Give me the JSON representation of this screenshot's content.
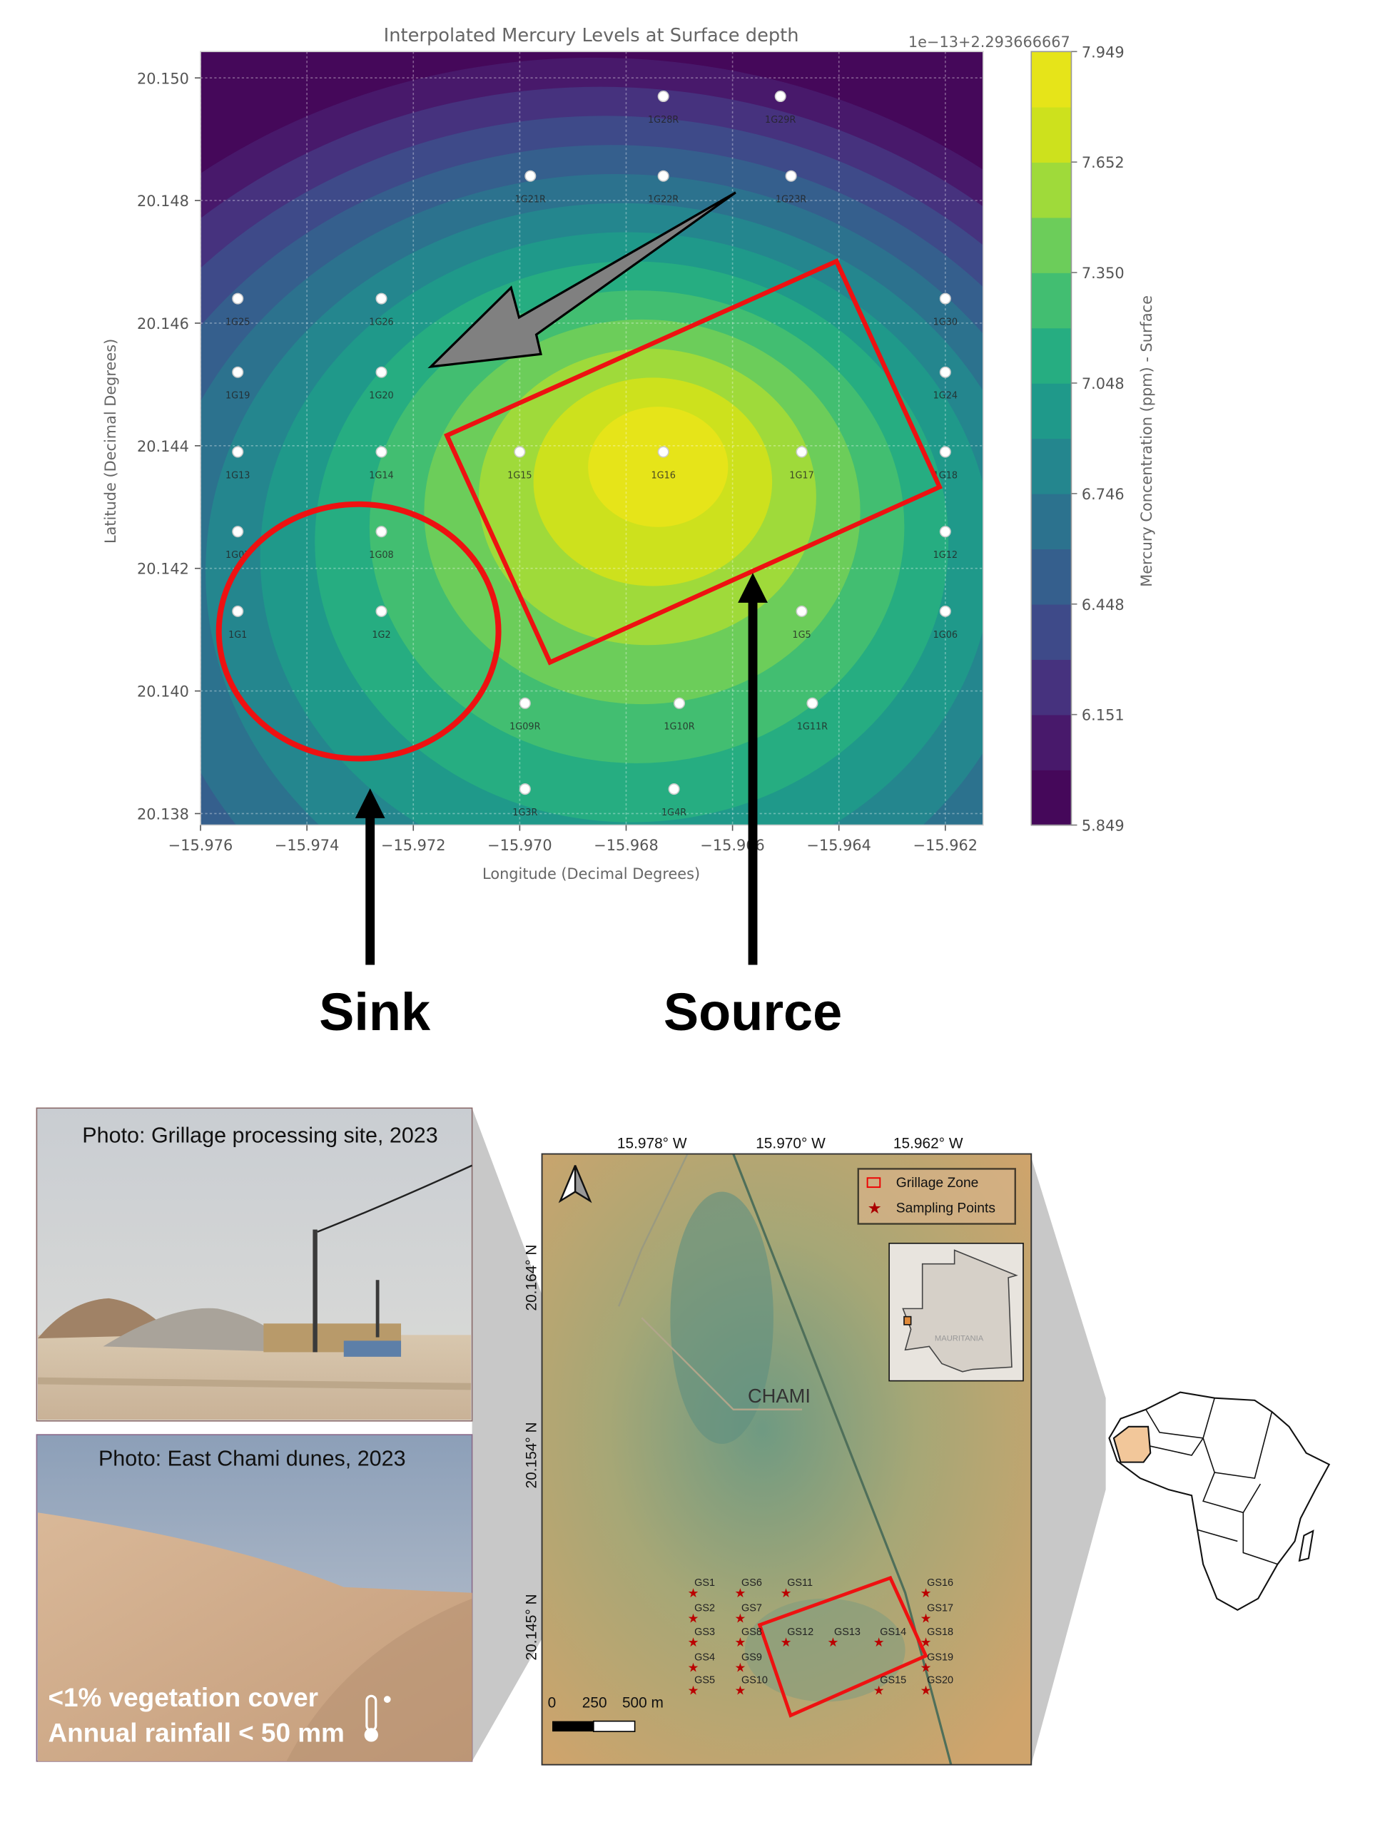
{
  "chart_data": {
    "type": "heatmap",
    "title": "Interpolated Mercury Levels at Surface depth",
    "offset_label": "1e−13+2.293666667",
    "xlabel": "Longitude (Decimal Degrees)",
    "ylabel": "Latitude (Decimal Degrees)",
    "xlim": [
      -15.9763,
      -15.9615
    ],
    "ylim": [
      20.1377,
      20.1506
    ],
    "xticks": [
      "−15.976",
      "−15.974",
      "−15.972",
      "−15.970",
      "−15.968",
      "−15.966",
      "−15.964",
      "−15.962"
    ],
    "yticks": [
      "20.150",
      "20.148",
      "20.146",
      "20.144",
      "20.142",
      "20.140",
      "20.138"
    ],
    "grid": true,
    "colormap": "viridis",
    "colorbar": {
      "label": "Mercury Concentration (ppm) - Surface",
      "ticks": [
        "7.949",
        "7.652",
        "7.350",
        "7.048",
        "6.746",
        "6.448",
        "6.151",
        "5.849"
      ],
      "range": [
        5.849,
        7.949
      ],
      "levels": 14
    },
    "peak": {
      "lon": -15.9673,
      "lat": 20.1439,
      "near": "1G16"
    },
    "points": [
      {
        "name": "1G28R",
        "lon": -15.9673,
        "lat": 20.1497
      },
      {
        "name": "1G29R",
        "lon": -15.9651,
        "lat": 20.1497
      },
      {
        "name": "1G21R",
        "lon": -15.9698,
        "lat": 20.1484
      },
      {
        "name": "1G22R",
        "lon": -15.9673,
        "lat": 20.1484
      },
      {
        "name": "1G23R",
        "lon": -15.9649,
        "lat": 20.1484
      },
      {
        "name": "1G25",
        "lon": -15.9753,
        "lat": 20.1464
      },
      {
        "name": "1G26",
        "lon": -15.9726,
        "lat": 20.1464
      },
      {
        "name": "1G30",
        "lon": -15.962,
        "lat": 20.1464
      },
      {
        "name": "1G19",
        "lon": -15.9753,
        "lat": 20.1452
      },
      {
        "name": "1G20",
        "lon": -15.9726,
        "lat": 20.1452
      },
      {
        "name": "1G24",
        "lon": -15.962,
        "lat": 20.1452
      },
      {
        "name": "1G13",
        "lon": -15.9753,
        "lat": 20.1439
      },
      {
        "name": "1G14",
        "lon": -15.9726,
        "lat": 20.1439
      },
      {
        "name": "1G15",
        "lon": -15.97,
        "lat": 20.1439
      },
      {
        "name": "1G16",
        "lon": -15.9673,
        "lat": 20.1439
      },
      {
        "name": "1G17",
        "lon": -15.9647,
        "lat": 20.1439
      },
      {
        "name": "1G18",
        "lon": -15.962,
        "lat": 20.1439
      },
      {
        "name": "1G07",
        "lon": -15.9753,
        "lat": 20.1426
      },
      {
        "name": "1G08",
        "lon": -15.9726,
        "lat": 20.1426
      },
      {
        "name": "1G12",
        "lon": -15.962,
        "lat": 20.1426
      },
      {
        "name": "1G1",
        "lon": -15.9753,
        "lat": 20.1413
      },
      {
        "name": "1G2",
        "lon": -15.9726,
        "lat": 20.1413
      },
      {
        "name": "1G5",
        "lon": -15.9647,
        "lat": 20.1413
      },
      {
        "name": "1G06",
        "lon": -15.962,
        "lat": 20.1413
      },
      {
        "name": "1G09R",
        "lon": -15.9699,
        "lat": 20.1398
      },
      {
        "name": "1G10R",
        "lon": -15.967,
        "lat": 20.1398
      },
      {
        "name": "1G11R",
        "lon": -15.9645,
        "lat": 20.1398
      },
      {
        "name": "1G3R",
        "lon": -15.9699,
        "lat": 20.1384
      },
      {
        "name": "1G4R",
        "lon": -15.9671,
        "lat": 20.1384
      }
    ]
  },
  "annotations": {
    "sink_label": "Sink",
    "source_label": "Source",
    "annotation_color": "#ee1111",
    "arrow_color": "#808080"
  },
  "photos": [
    {
      "caption": "Photo: Grillage processing site, 2023"
    },
    {
      "caption": "Photo: East Chami dunes, 2023",
      "overlay_lines": [
        "<1% vegetation cover",
        "Annual rainfall < 50 mm"
      ],
      "icon": "thermometer-sun-icon"
    }
  ],
  "site_map": {
    "lon_labels": [
      "15.978°  W",
      "15.970°  W",
      "15.962°  W"
    ],
    "lat_labels": [
      "20.164°  N",
      "20.154°  N",
      "20.145°  N"
    ],
    "town_label": "CHAMI",
    "legend": [
      {
        "label": "Grillage Zone",
        "icon": "red-rectangle"
      },
      {
        "label": "Sampling Points",
        "icon": "red-star"
      }
    ],
    "inset_label": "MAURITANIA",
    "scale_labels": [
      "0",
      "250",
      "500 m"
    ],
    "sampling_points": [
      "GS1",
      "GS2",
      "GS3",
      "GS4",
      "GS5",
      "GS6",
      "GS7",
      "GS8",
      "GS9",
      "GS10",
      "GS11",
      "GS12",
      "GS13",
      "GS14",
      "GS15",
      "GS16",
      "GS17",
      "GS18",
      "GS19",
      "GS20"
    ]
  }
}
